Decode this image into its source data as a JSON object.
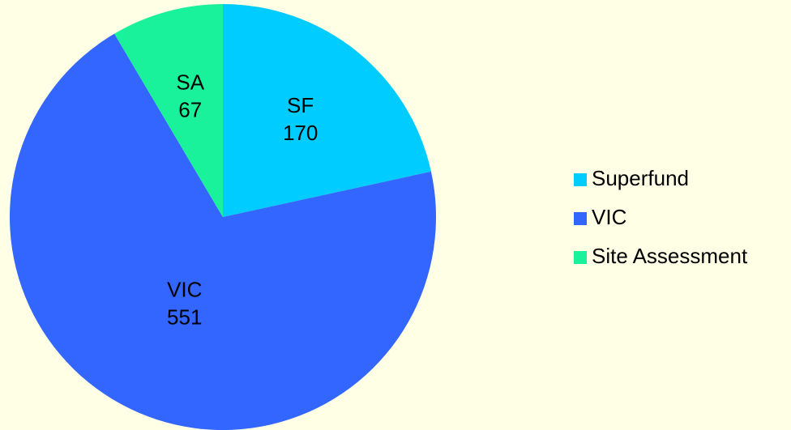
{
  "chart_data": {
    "type": "pie",
    "categories": [
      "Superfund",
      "VIC",
      "Site Assessment"
    ],
    "slice_labels": [
      "SF",
      "VIC",
      "SA"
    ],
    "values": [
      170,
      551,
      67
    ],
    "colors": [
      "#00ccff",
      "#3366ff",
      "#19f29a"
    ],
    "legend": "right"
  }
}
